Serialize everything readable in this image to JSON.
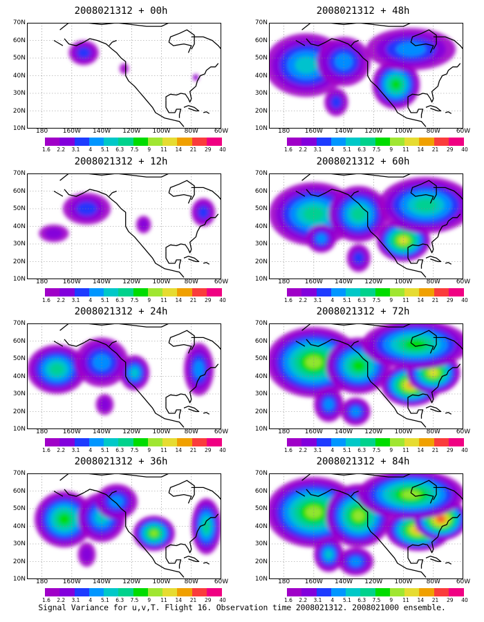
{
  "caption": "Signal Variance for u,v,T. Flight 16. Observation time 2008021312. 2008021000 ensemble.",
  "panels": [
    {
      "title": "2008021312 + 00h",
      "intensity": 0,
      "blobs": [
        [
          -152,
          53,
          10,
          7,
          1.5
        ],
        [
          -125,
          44,
          3,
          3,
          0.5
        ],
        [
          -77,
          39,
          2,
          2,
          0.8
        ]
      ]
    },
    {
      "title": "2008021312 + 12h",
      "intensity": 1,
      "blobs": [
        [
          -150,
          50,
          16,
          9,
          1.6
        ],
        [
          -172,
          36,
          10,
          5,
          1.2
        ],
        [
          -112,
          41,
          5,
          5,
          1.0
        ],
        [
          -72,
          48,
          8,
          8,
          1.6
        ]
      ]
    },
    {
      "title": "2008021312 + 24h",
      "intensity": 2,
      "blobs": [
        [
          -170,
          44,
          20,
          14,
          2.8
        ],
        [
          -140,
          48,
          18,
          14,
          2.0
        ],
        [
          -118,
          42,
          10,
          10,
          2.6
        ],
        [
          -75,
          44,
          10,
          15,
          2.0
        ],
        [
          -138,
          24,
          6,
          6,
          1.0
        ]
      ]
    },
    {
      "title": "2008021312 + 36h",
      "intensity": 3,
      "blobs": [
        [
          -165,
          44,
          20,
          16,
          3.4
        ],
        [
          -140,
          45,
          16,
          14,
          2.6
        ],
        [
          -105,
          36,
          14,
          10,
          3.8
        ],
        [
          -70,
          40,
          10,
          16,
          2.8
        ],
        [
          -150,
          24,
          6,
          7,
          1.2
        ],
        [
          -130,
          54,
          14,
          10,
          2.0
        ]
      ]
    },
    {
      "title": "2008021312 + 48h",
      "intensity": 4,
      "blobs": [
        [
          -165,
          46,
          28,
          18,
          2.6
        ],
        [
          -140,
          48,
          18,
          14,
          2.2
        ],
        [
          -105,
          35,
          16,
          14,
          3.6
        ],
        [
          -95,
          55,
          30,
          12,
          1.8
        ],
        [
          -145,
          25,
          8,
          8,
          1.4
        ]
      ]
    },
    {
      "title": "2008021312 + 60h",
      "intensity": 5,
      "blobs": [
        [
          -160,
          47,
          30,
          18,
          3.0
        ],
        [
          -130,
          47,
          20,
          16,
          3.0
        ],
        [
          -100,
          32,
          18,
          12,
          4.4
        ],
        [
          -85,
          52,
          32,
          16,
          3.2
        ],
        [
          -155,
          33,
          10,
          8,
          2.0
        ],
        [
          -130,
          22,
          8,
          8,
          1.6
        ]
      ]
    },
    {
      "title": "2008021312 + 72h",
      "intensity": 6,
      "blobs": [
        [
          -160,
          48,
          32,
          20,
          3.8
        ],
        [
          -130,
          46,
          22,
          16,
          3.6
        ],
        [
          -95,
          35,
          20,
          12,
          4.8
        ],
        [
          -80,
          42,
          18,
          12,
          4.4
        ],
        [
          -92,
          58,
          36,
          14,
          3.6
        ],
        [
          -150,
          24,
          10,
          10,
          2.2
        ],
        [
          -132,
          20,
          10,
          8,
          2.0
        ]
      ]
    },
    {
      "title": "2008021312 + 84h",
      "intensity": 7,
      "blobs": [
        [
          -160,
          48,
          32,
          20,
          4.0
        ],
        [
          -130,
          46,
          22,
          18,
          3.8
        ],
        [
          -90,
          38,
          22,
          12,
          5.0
        ],
        [
          -75,
          44,
          18,
          12,
          5.4
        ],
        [
          -95,
          58,
          36,
          14,
          3.8
        ],
        [
          -150,
          24,
          10,
          10,
          2.4
        ],
        [
          -132,
          20,
          12,
          8,
          2.2
        ]
      ]
    }
  ],
  "map_axes": {
    "lat_labels": [
      "70N",
      "60N",
      "50N",
      "40N",
      "30N",
      "20N",
      "10N"
    ],
    "lon_labels": [
      "180",
      "160W",
      "140W",
      "120W",
      "100W",
      "80W",
      "60W"
    ],
    "lat_range": [
      10,
      70
    ],
    "lon_range": [
      -190,
      -60
    ]
  },
  "colorbar": {
    "colors": [
      "#a000c8",
      "#8200dc",
      "#1e3cff",
      "#0096ff",
      "#00c8c8",
      "#00d28c",
      "#00dc00",
      "#a0e632",
      "#e6dc32",
      "#f0a000",
      "#fa3c3c",
      "#f00082"
    ],
    "ticks": [
      "1.6",
      "2.2",
      "3.1",
      "4",
      "5.1",
      "6.3",
      "7.5",
      "9",
      "11",
      "14",
      "21",
      "29",
      "40"
    ]
  },
  "colors": {
    "coast": "#000000",
    "grid": "#888888",
    "frame": "#000000"
  }
}
